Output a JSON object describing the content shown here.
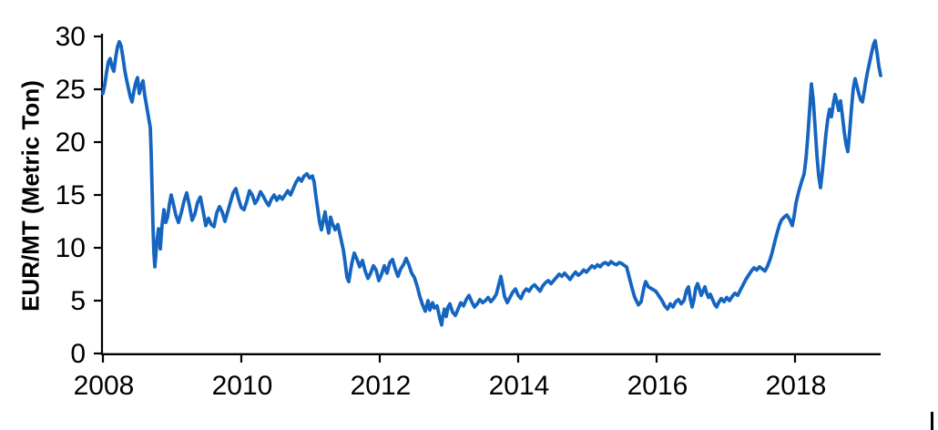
{
  "chart_data": {
    "type": "line",
    "title": "",
    "xlabel": "",
    "ylabel": "EUR/MT (Metric Ton)",
    "x_tick_labels": [
      "2008",
      "2010",
      "2012",
      "2014",
      "2016",
      "2018"
    ],
    "x_ticks": [
      2008,
      2010,
      2012,
      2014,
      2016,
      2018
    ],
    "y_tick_labels": [
      "0",
      "5",
      "10",
      "15",
      "20",
      "25",
      "30"
    ],
    "y_ticks": [
      0,
      5,
      10,
      15,
      20,
      25,
      30
    ],
    "xlim": [
      2008,
      2019.25
    ],
    "ylim": [
      0,
      30
    ],
    "grid": false,
    "legend_position": "none",
    "line_color": "#1565c0",
    "axis_color": "#000000",
    "tick_label_color": "#000000",
    "points": [
      [
        2008.0,
        24.6
      ],
      [
        2008.026,
        25.4
      ],
      [
        2008.053,
        26.6
      ],
      [
        2008.079,
        27.6
      ],
      [
        2008.105,
        27.9
      ],
      [
        2008.132,
        27.1
      ],
      [
        2008.158,
        26.7
      ],
      [
        2008.184,
        28.0
      ],
      [
        2008.211,
        29.0
      ],
      [
        2008.237,
        29.5
      ],
      [
        2008.263,
        29.1
      ],
      [
        2008.289,
        28.0
      ],
      [
        2008.316,
        26.8
      ],
      [
        2008.342,
        25.9
      ],
      [
        2008.368,
        25.1
      ],
      [
        2008.395,
        24.3
      ],
      [
        2008.421,
        23.8
      ],
      [
        2008.447,
        24.8
      ],
      [
        2008.474,
        25.6
      ],
      [
        2008.5,
        26.1
      ],
      [
        2008.526,
        24.6
      ],
      [
        2008.553,
        25.3
      ],
      [
        2008.579,
        25.8
      ],
      [
        2008.605,
        24.4
      ],
      [
        2008.632,
        23.4
      ],
      [
        2008.658,
        22.4
      ],
      [
        2008.684,
        21.4
      ],
      [
        2008.697,
        19.0
      ],
      [
        2008.711,
        15.5
      ],
      [
        2008.724,
        12.0
      ],
      [
        2008.737,
        9.5
      ],
      [
        2008.75,
        8.2
      ],
      [
        2008.763,
        9.2
      ],
      [
        2008.776,
        10.4
      ],
      [
        2008.803,
        11.8
      ],
      [
        2008.829,
        9.9
      ],
      [
        2008.855,
        12.2
      ],
      [
        2008.882,
        13.6
      ],
      [
        2008.908,
        12.4
      ],
      [
        2008.934,
        12.9
      ],
      [
        2008.961,
        14.1
      ],
      [
        2008.987,
        15.0
      ],
      [
        2009.013,
        14.3
      ],
      [
        2009.053,
        13.1
      ],
      [
        2009.092,
        12.4
      ],
      [
        2009.132,
        13.3
      ],
      [
        2009.171,
        14.4
      ],
      [
        2009.211,
        15.2
      ],
      [
        2009.25,
        14.0
      ],
      [
        2009.289,
        12.6
      ],
      [
        2009.329,
        13.2
      ],
      [
        2009.368,
        14.3
      ],
      [
        2009.408,
        14.8
      ],
      [
        2009.447,
        13.5
      ],
      [
        2009.487,
        12.1
      ],
      [
        2009.526,
        12.8
      ],
      [
        2009.566,
        12.2
      ],
      [
        2009.605,
        12.0
      ],
      [
        2009.645,
        13.3
      ],
      [
        2009.684,
        13.9
      ],
      [
        2009.724,
        13.4
      ],
      [
        2009.763,
        12.5
      ],
      [
        2009.803,
        13.4
      ],
      [
        2009.842,
        14.3
      ],
      [
        2009.882,
        15.2
      ],
      [
        2009.921,
        15.6
      ],
      [
        2009.961,
        14.6
      ],
      [
        2010.0,
        13.8
      ],
      [
        2010.039,
        13.6
      ],
      [
        2010.079,
        14.4
      ],
      [
        2010.118,
        15.4
      ],
      [
        2010.158,
        15.0
      ],
      [
        2010.197,
        14.2
      ],
      [
        2010.237,
        14.6
      ],
      [
        2010.276,
        15.3
      ],
      [
        2010.316,
        14.9
      ],
      [
        2010.355,
        14.4
      ],
      [
        2010.395,
        14.0
      ],
      [
        2010.434,
        14.6
      ],
      [
        2010.474,
        15.0
      ],
      [
        2010.513,
        14.5
      ],
      [
        2010.553,
        14.9
      ],
      [
        2010.592,
        14.6
      ],
      [
        2010.632,
        15.0
      ],
      [
        2010.671,
        15.4
      ],
      [
        2010.711,
        15.0
      ],
      [
        2010.75,
        15.6
      ],
      [
        2010.789,
        16.2
      ],
      [
        2010.829,
        16.6
      ],
      [
        2010.868,
        16.3
      ],
      [
        2010.908,
        16.8
      ],
      [
        2010.947,
        17.0
      ],
      [
        2010.987,
        16.6
      ],
      [
        2011.026,
        16.8
      ],
      [
        2011.053,
        16.2
      ],
      [
        2011.079,
        14.8
      ],
      [
        2011.105,
        13.6
      ],
      [
        2011.132,
        12.4
      ],
      [
        2011.158,
        11.7
      ],
      [
        2011.184,
        12.6
      ],
      [
        2011.211,
        13.4
      ],
      [
        2011.237,
        12.2
      ],
      [
        2011.263,
        11.4
      ],
      [
        2011.289,
        12.9
      ],
      [
        2011.316,
        12.3
      ],
      [
        2011.355,
        11.7
      ],
      [
        2011.395,
        12.2
      ],
      [
        2011.434,
        11.0
      ],
      [
        2011.474,
        9.8
      ],
      [
        2011.5,
        8.6
      ],
      [
        2011.526,
        7.2
      ],
      [
        2011.553,
        6.8
      ],
      [
        2011.579,
        7.9
      ],
      [
        2011.605,
        8.8
      ],
      [
        2011.632,
        9.5
      ],
      [
        2011.671,
        8.9
      ],
      [
        2011.711,
        8.2
      ],
      [
        2011.75,
        8.8
      ],
      [
        2011.789,
        7.8
      ],
      [
        2011.829,
        7.1
      ],
      [
        2011.868,
        7.6
      ],
      [
        2011.908,
        8.3
      ],
      [
        2011.947,
        7.9
      ],
      [
        2011.987,
        6.9
      ],
      [
        2012.026,
        7.5
      ],
      [
        2012.066,
        8.3
      ],
      [
        2012.105,
        7.6
      ],
      [
        2012.145,
        8.6
      ],
      [
        2012.184,
        8.9
      ],
      [
        2012.224,
        8.0
      ],
      [
        2012.263,
        7.3
      ],
      [
        2012.303,
        8.0
      ],
      [
        2012.342,
        8.4
      ],
      [
        2012.382,
        9.0
      ],
      [
        2012.421,
        8.4
      ],
      [
        2012.461,
        7.6
      ],
      [
        2012.5,
        7.2
      ],
      [
        2012.539,
        6.4
      ],
      [
        2012.579,
        5.4
      ],
      [
        2012.618,
        4.6
      ],
      [
        2012.658,
        4.0
      ],
      [
        2012.697,
        5.0
      ],
      [
        2012.724,
        4.1
      ],
      [
        2012.763,
        4.8
      ],
      [
        2012.789,
        4.3
      ],
      [
        2012.829,
        4.5
      ],
      [
        2012.868,
        3.3
      ],
      [
        2012.895,
        2.7
      ],
      [
        2012.908,
        3.4
      ],
      [
        2012.934,
        4.2
      ],
      [
        2012.961,
        3.5
      ],
      [
        2012.987,
        4.4
      ],
      [
        2013.013,
        4.7
      ],
      [
        2013.053,
        3.9
      ],
      [
        2013.092,
        3.6
      ],
      [
        2013.132,
        4.2
      ],
      [
        2013.171,
        4.8
      ],
      [
        2013.211,
        4.5
      ],
      [
        2013.25,
        5.1
      ],
      [
        2013.289,
        5.5
      ],
      [
        2013.329,
        4.9
      ],
      [
        2013.368,
        4.4
      ],
      [
        2013.408,
        4.7
      ],
      [
        2013.447,
        5.1
      ],
      [
        2013.487,
        4.8
      ],
      [
        2013.526,
        5.0
      ],
      [
        2013.566,
        5.3
      ],
      [
        2013.605,
        4.9
      ],
      [
        2013.645,
        5.2
      ],
      [
        2013.684,
        5.6
      ],
      [
        2013.724,
        6.6
      ],
      [
        2013.75,
        7.3
      ],
      [
        2013.776,
        6.4
      ],
      [
        2013.803,
        5.4
      ],
      [
        2013.842,
        4.8
      ],
      [
        2013.882,
        5.3
      ],
      [
        2013.921,
        5.8
      ],
      [
        2013.961,
        6.1
      ],
      [
        2014.0,
        5.5
      ],
      [
        2014.039,
        5.2
      ],
      [
        2014.079,
        5.8
      ],
      [
        2014.118,
        6.1
      ],
      [
        2014.158,
        5.9
      ],
      [
        2014.197,
        6.3
      ],
      [
        2014.237,
        6.5
      ],
      [
        2014.276,
        6.2
      ],
      [
        2014.316,
        5.9
      ],
      [
        2014.355,
        6.4
      ],
      [
        2014.395,
        6.7
      ],
      [
        2014.434,
        6.9
      ],
      [
        2014.474,
        6.6
      ],
      [
        2014.513,
        6.9
      ],
      [
        2014.553,
        7.2
      ],
      [
        2014.592,
        7.5
      ],
      [
        2014.632,
        7.3
      ],
      [
        2014.671,
        7.6
      ],
      [
        2014.711,
        7.3
      ],
      [
        2014.75,
        7.0
      ],
      [
        2014.789,
        7.4
      ],
      [
        2014.829,
        7.7
      ],
      [
        2014.868,
        7.4
      ],
      [
        2014.908,
        7.6
      ],
      [
        2014.947,
        7.9
      ],
      [
        2014.987,
        7.7
      ],
      [
        2015.026,
        8.0
      ],
      [
        2015.066,
        8.3
      ],
      [
        2015.105,
        8.1
      ],
      [
        2015.145,
        8.4
      ],
      [
        2015.184,
        8.2
      ],
      [
        2015.224,
        8.5
      ],
      [
        2015.263,
        8.6
      ],
      [
        2015.303,
        8.4
      ],
      [
        2015.342,
        8.7
      ],
      [
        2015.382,
        8.5
      ],
      [
        2015.421,
        8.4
      ],
      [
        2015.461,
        8.6
      ],
      [
        2015.5,
        8.5
      ],
      [
        2015.539,
        8.3
      ],
      [
        2015.566,
        8.2
      ],
      [
        2015.605,
        7.2
      ],
      [
        2015.645,
        6.2
      ],
      [
        2015.684,
        5.3
      ],
      [
        2015.737,
        4.6
      ],
      [
        2015.776,
        4.9
      ],
      [
        2015.816,
        6.2
      ],
      [
        2015.842,
        6.8
      ],
      [
        2015.882,
        6.3
      ],
      [
        2015.934,
        6.1
      ],
      [
        2015.987,
        5.9
      ],
      [
        2016.039,
        5.4
      ],
      [
        2016.079,
        5.0
      ],
      [
        2016.118,
        4.5
      ],
      [
        2016.158,
        4.2
      ],
      [
        2016.197,
        4.7
      ],
      [
        2016.237,
        4.4
      ],
      [
        2016.276,
        4.9
      ],
      [
        2016.316,
        5.1
      ],
      [
        2016.355,
        4.7
      ],
      [
        2016.395,
        5.0
      ],
      [
        2016.434,
        6.0
      ],
      [
        2016.461,
        6.3
      ],
      [
        2016.487,
        5.2
      ],
      [
        2016.513,
        4.4
      ],
      [
        2016.539,
        5.1
      ],
      [
        2016.566,
        6.2
      ],
      [
        2016.592,
        6.6
      ],
      [
        2016.618,
        6.1
      ],
      [
        2016.645,
        5.5
      ],
      [
        2016.671,
        5.9
      ],
      [
        2016.697,
        6.3
      ],
      [
        2016.724,
        5.7
      ],
      [
        2016.75,
        5.3
      ],
      [
        2016.776,
        5.6
      ],
      [
        2016.816,
        5.0
      ],
      [
        2016.842,
        4.6
      ],
      [
        2016.868,
        4.4
      ],
      [
        2016.895,
        4.8
      ],
      [
        2016.934,
        5.2
      ],
      [
        2016.974,
        4.9
      ],
      [
        2017.013,
        5.3
      ],
      [
        2017.053,
        5.0
      ],
      [
        2017.092,
        5.4
      ],
      [
        2017.132,
        5.7
      ],
      [
        2017.171,
        5.5
      ],
      [
        2017.211,
        6.0
      ],
      [
        2017.25,
        6.5
      ],
      [
        2017.289,
        7.0
      ],
      [
        2017.329,
        7.4
      ],
      [
        2017.368,
        7.8
      ],
      [
        2017.408,
        8.1
      ],
      [
        2017.447,
        7.9
      ],
      [
        2017.487,
        8.2
      ],
      [
        2017.526,
        8.0
      ],
      [
        2017.566,
        7.8
      ],
      [
        2017.605,
        8.3
      ],
      [
        2017.645,
        9.0
      ],
      [
        2017.671,
        9.6
      ],
      [
        2017.697,
        10.3
      ],
      [
        2017.724,
        11.0
      ],
      [
        2017.75,
        11.6
      ],
      [
        2017.776,
        12.2
      ],
      [
        2017.803,
        12.6
      ],
      [
        2017.842,
        12.9
      ],
      [
        2017.882,
        13.1
      ],
      [
        2017.921,
        12.7
      ],
      [
        2017.961,
        12.1
      ],
      [
        2017.987,
        13.0
      ],
      [
        2018.013,
        14.2
      ],
      [
        2018.053,
        15.3
      ],
      [
        2018.092,
        16.2
      ],
      [
        2018.132,
        17.0
      ],
      [
        2018.158,
        18.4
      ],
      [
        2018.184,
        20.5
      ],
      [
        2018.211,
        23.0
      ],
      [
        2018.237,
        25.5
      ],
      [
        2018.263,
        24.0
      ],
      [
        2018.289,
        21.5
      ],
      [
        2018.316,
        18.8
      ],
      [
        2018.342,
        16.8
      ],
      [
        2018.368,
        15.7
      ],
      [
        2018.395,
        17.2
      ],
      [
        2018.421,
        19.0
      ],
      [
        2018.447,
        20.8
      ],
      [
        2018.474,
        22.2
      ],
      [
        2018.5,
        23.1
      ],
      [
        2018.526,
        22.4
      ],
      [
        2018.553,
        23.6
      ],
      [
        2018.579,
        24.5
      ],
      [
        2018.605,
        23.8
      ],
      [
        2018.632,
        23.0
      ],
      [
        2018.658,
        23.9
      ],
      [
        2018.684,
        22.5
      ],
      [
        2018.711,
        21.0
      ],
      [
        2018.737,
        19.8
      ],
      [
        2018.763,
        19.1
      ],
      [
        2018.789,
        21.0
      ],
      [
        2018.816,
        23.2
      ],
      [
        2018.842,
        25.1
      ],
      [
        2018.868,
        26.0
      ],
      [
        2018.895,
        25.3
      ],
      [
        2018.921,
        24.6
      ],
      [
        2018.947,
        24.0
      ],
      [
        2018.974,
        23.8
      ],
      [
        2019.0,
        24.8
      ],
      [
        2019.026,
        25.9
      ],
      [
        2019.053,
        26.8
      ],
      [
        2019.079,
        27.6
      ],
      [
        2019.105,
        28.4
      ],
      [
        2019.132,
        29.2
      ],
      [
        2019.158,
        29.6
      ],
      [
        2019.184,
        28.5
      ],
      [
        2019.211,
        27.2
      ],
      [
        2019.237,
        26.3
      ]
    ]
  }
}
